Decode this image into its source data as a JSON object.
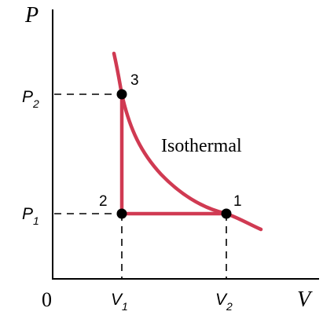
{
  "axes": {
    "y_label": "P",
    "x_label": "V",
    "origin": "0"
  },
  "ticks": {
    "p2": {
      "base": "P",
      "sub": "2"
    },
    "p1": {
      "base": "P",
      "sub": "1"
    },
    "v1": {
      "base": "V",
      "sub": "1"
    },
    "v2": {
      "base": "V",
      "sub": "2"
    }
  },
  "curve_label": "Isothermal",
  "points": [
    "1",
    "2",
    "3"
  ]
}
